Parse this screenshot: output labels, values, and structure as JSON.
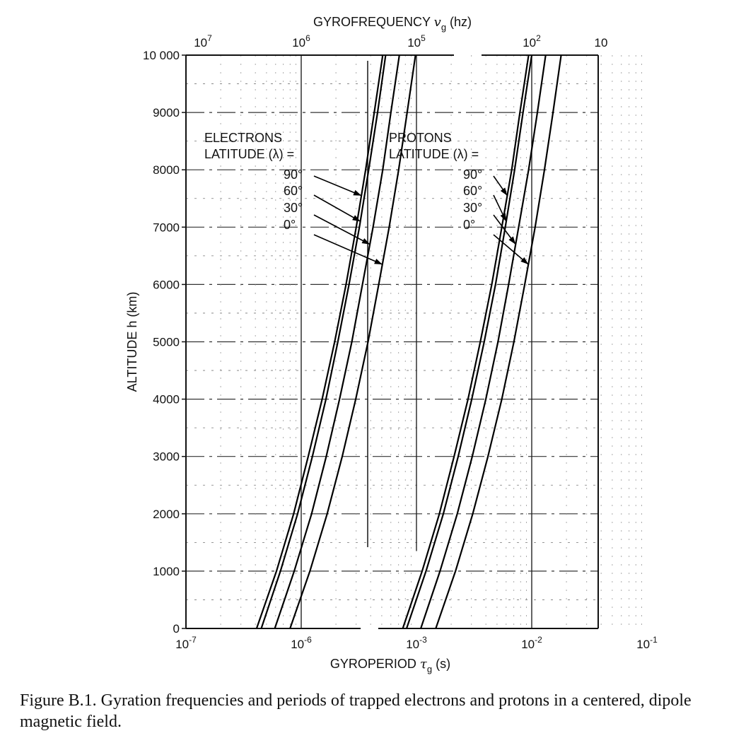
{
  "chart_data": {
    "type": "line",
    "title": "",
    "top_axis_label": "GYROFREQUENCY",
    "top_axis_symbol": "v",
    "top_axis_subscript": "g",
    "top_axis_unit": "(hz)",
    "top_ticks": [
      {
        "base": "10",
        "exp": "7",
        "tau_exp": -7
      },
      {
        "base": "10",
        "exp": "6",
        "tau_exp": -6
      },
      {
        "base": "10",
        "exp": "5",
        "tau_exp": -5
      },
      {
        "base": "10",
        "exp": "2",
        "tau_exp": -2
      },
      {
        "base": "10",
        "exp": "",
        "tau_exp": -1
      }
    ],
    "xlabel": "GYROPERIOD",
    "xlabel_symbol": "τ",
    "xlabel_subscript": "g",
    "xlabel_unit": "(s)",
    "x_ticks": [
      {
        "base": "10",
        "exp": "-7",
        "tau_exp": -7
      },
      {
        "base": "10",
        "exp": "-6",
        "tau_exp": -6
      },
      {
        "base": "10",
        "exp": "-3",
        "tau_exp": -3
      },
      {
        "base": "10",
        "exp": "-2",
        "tau_exp": -2
      },
      {
        "base": "10",
        "exp": "-1",
        "tau_exp": -1
      }
    ],
    "ylabel": "ALTITUDE h (km)",
    "y_ticks": [
      "0",
      "1000",
      "2000",
      "3000",
      "4000",
      "5000",
      "6000",
      "7000",
      "8000",
      "9000",
      "10 000"
    ],
    "ylim": [
      0,
      10000
    ],
    "x_scale": "log",
    "panels": [
      {
        "name": "electrons",
        "label_line1": "ELECTRONS",
        "label_line2": "LATITUDE (λ)  =",
        "xlim_exp": [
          -7,
          -5
        ],
        "series": [
          {
            "name": "90°",
            "points": [
              [
                0,
                4.1e-07
              ],
              [
                1000,
                6.1e-07
              ],
              [
                2000,
                8.6e-07
              ],
              [
                3000,
                1.15e-06
              ],
              [
                4000,
                1.52e-06
              ],
              [
                5000,
                1.95e-06
              ],
              [
                6000,
                2.45e-06
              ],
              [
                7000,
                3e-06
              ],
              [
                8000,
                3.62e-06
              ],
              [
                9000,
                4.3e-06
              ],
              [
                10000,
                5.1e-06
              ]
            ]
          },
          {
            "name": "60°",
            "points": [
              [
                0,
                4.5e-07
              ],
              [
                1000,
                6.6e-07
              ],
              [
                2000,
                9.3e-07
              ],
              [
                3000,
                1.25e-06
              ],
              [
                4000,
                1.64e-06
              ],
              [
                5000,
                2.08e-06
              ],
              [
                6000,
                2.6e-06
              ],
              [
                7000,
                3.2e-06
              ],
              [
                8000,
                3.85e-06
              ],
              [
                9000,
                4.6e-06
              ],
              [
                10000,
                5.4e-06
              ]
            ]
          },
          {
            "name": "30°",
            "points": [
              [
                0,
                5.9e-07
              ],
              [
                1000,
                8.7e-07
              ],
              [
                2000,
                1.23e-06
              ],
              [
                3000,
                1.65e-06
              ],
              [
                4000,
                2.15e-06
              ],
              [
                5000,
                2.75e-06
              ],
              [
                6000,
                3.4e-06
              ],
              [
                7000,
                4.2e-06
              ],
              [
                8000,
                5.1e-06
              ],
              [
                9000,
                6e-06
              ],
              [
                10000,
                7.1e-06
              ]
            ]
          },
          {
            "name": "0°",
            "points": [
              [
                0,
                8e-07
              ],
              [
                1000,
                1.19e-06
              ],
              [
                2000,
                1.68e-06
              ],
              [
                3000,
                2.27e-06
              ],
              [
                4000,
                2.97e-06
              ],
              [
                5000,
                3.8e-06
              ],
              [
                6000,
                4.7e-06
              ],
              [
                7000,
                5.8e-06
              ],
              [
                8000,
                7e-06
              ],
              [
                9000,
                8.3e-06
              ],
              [
                10000,
                9.8e-06
              ]
            ]
          }
        ]
      },
      {
        "name": "protons",
        "label_line1": "PROTONS",
        "label_line2": "LATITUDE (λ)  =",
        "xlim_exp": [
          -3,
          -1
        ],
        "series": [
          {
            "name": "90°",
            "points": [
              [
                0,
                0.00076
              ],
              [
                1000,
                0.00112
              ],
              [
                2000,
                0.00158
              ],
              [
                3000,
                0.00212
              ],
              [
                4000,
                0.0028
              ],
              [
                5000,
                0.00358
              ],
              [
                6000,
                0.0045
              ],
              [
                7000,
                0.0055
              ],
              [
                8000,
                0.0067
              ],
              [
                9000,
                0.0079
              ],
              [
                10000,
                0.0094
              ]
            ]
          },
          {
            "name": "60°",
            "points": [
              [
                0,
                0.00082
              ],
              [
                1000,
                0.00121
              ],
              [
                2000,
                0.00171
              ],
              [
                3000,
                0.0023
              ],
              [
                4000,
                0.00302
              ],
              [
                5000,
                0.00387
              ],
              [
                6000,
                0.00485
              ],
              [
                7000,
                0.0059
              ],
              [
                8000,
                0.0071
              ],
              [
                9000,
                0.0084
              ],
              [
                10000,
                0.01
              ]
            ]
          },
          {
            "name": "30°",
            "points": [
              [
                0,
                0.00109
              ],
              [
                1000,
                0.0016
              ],
              [
                2000,
                0.00226
              ],
              [
                3000,
                0.00305
              ],
              [
                4000,
                0.004
              ],
              [
                5000,
                0.0051
              ],
              [
                6000,
                0.0063
              ],
              [
                7000,
                0.0077
              ],
              [
                8000,
                0.0094
              ],
              [
                9000,
                0.0112
              ],
              [
                10000,
                0.0132
              ]
            ]
          },
          {
            "name": "0°",
            "points": [
              [
                0,
                0.00147
              ],
              [
                1000,
                0.00218
              ],
              [
                2000,
                0.00308
              ],
              [
                3000,
                0.00417
              ],
              [
                4000,
                0.0055
              ],
              [
                5000,
                0.007
              ],
              [
                6000,
                0.0087
              ],
              [
                7000,
                0.0107
              ],
              [
                8000,
                0.0129
              ],
              [
                9000,
                0.0153
              ],
              [
                10000,
                0.018
              ]
            ]
          }
        ]
      }
    ]
  },
  "caption": "Figure B.1. Gyration frequencies and periods of trapped electrons and protons in a centered, dipole magnetic field."
}
